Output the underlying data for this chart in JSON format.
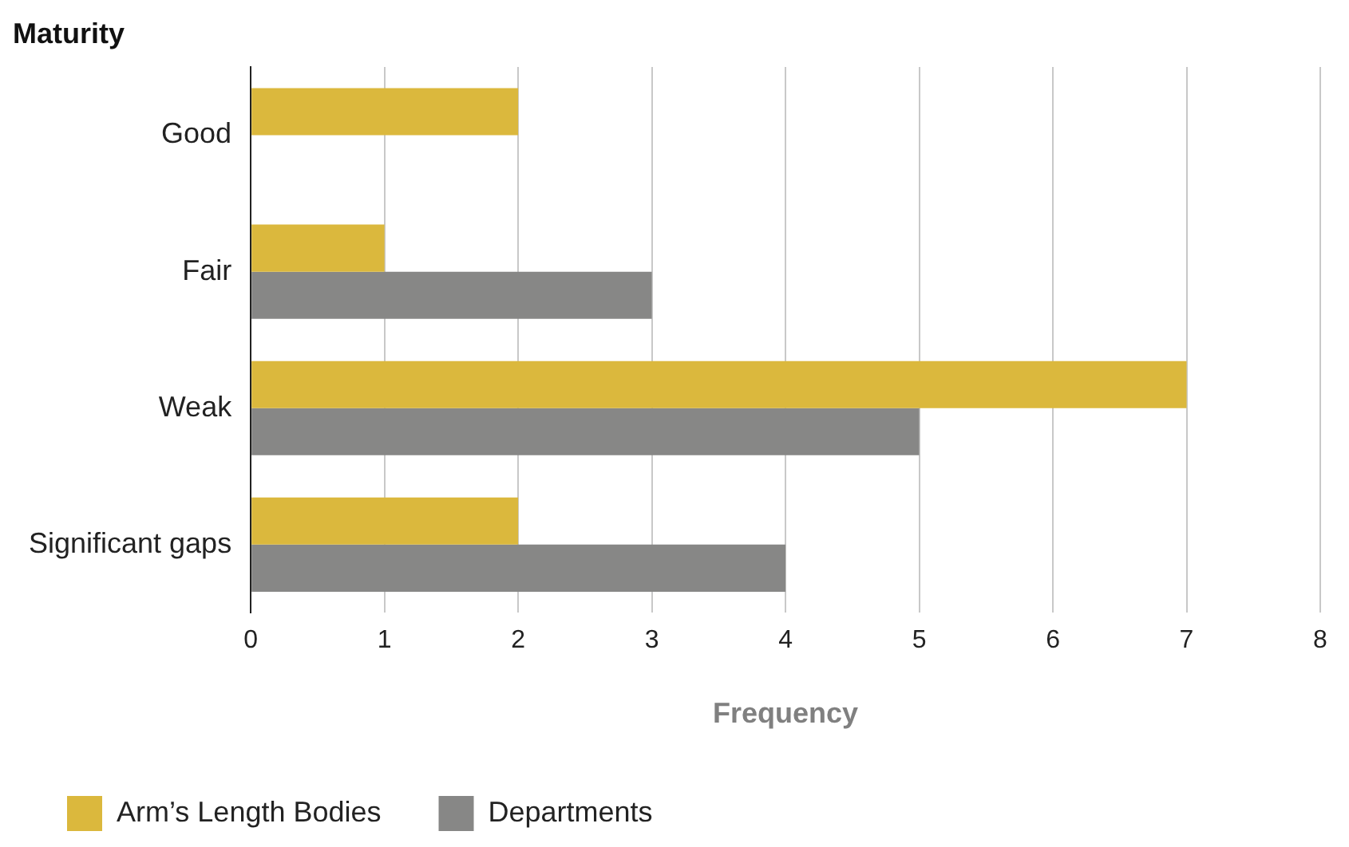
{
  "chart_data": {
    "type": "bar",
    "orientation": "horizontal",
    "ylabel": "Maturity",
    "xlabel": "Frequency",
    "categories": [
      "Good",
      "Fair",
      "Weak",
      "Significant gaps"
    ],
    "series": [
      {
        "name": "Arm’s Length Bodies",
        "color": "#dbb83d",
        "values": [
          2,
          1,
          7,
          2
        ]
      },
      {
        "name": "Departments",
        "color": "#878786",
        "values": [
          null,
          3,
          5,
          4
        ]
      }
    ],
    "xlim": [
      0,
      8
    ],
    "xticks": [
      0,
      1,
      2,
      3,
      4,
      5,
      6,
      7,
      8
    ],
    "grid": "x",
    "legend": "bottom left"
  }
}
